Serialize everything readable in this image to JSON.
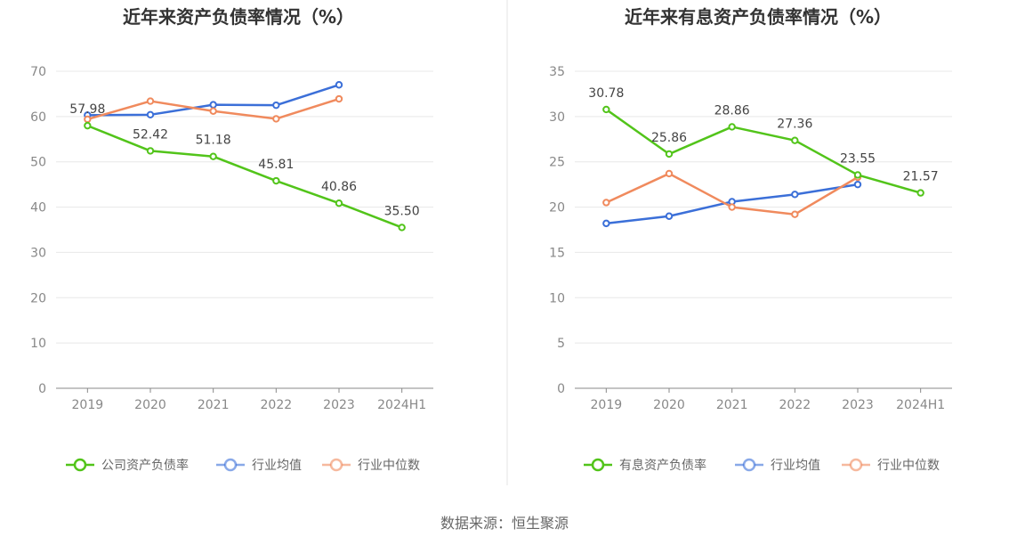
{
  "source_text": "数据来源：恒生聚源",
  "colors": {
    "green": "#52c41a",
    "blue": "#3b6fd8",
    "orange": "#f08a5d",
    "grid": "#e8e8e8",
    "axis": "#888888"
  },
  "chart_data": [
    {
      "type": "line",
      "title": "近年来资产负债率情况（%）",
      "categories": [
        "2019",
        "2020",
        "2021",
        "2022",
        "2023",
        "2024H1"
      ],
      "ylim": [
        0,
        70
      ],
      "yticks": [
        "0",
        "10",
        "20",
        "30",
        "40",
        "50",
        "60",
        "70"
      ],
      "grid": true,
      "legend_position": "bottom",
      "series": [
        {
          "name": "公司资产负债率",
          "color": "#52c41a",
          "values": [
            57.98,
            52.42,
            51.18,
            45.81,
            40.86,
            35.5
          ],
          "labels": [
            "57.98",
            "52.42",
            "51.18",
            "45.81",
            "40.86",
            "35.50"
          ]
        },
        {
          "name": "行业均值",
          "color": "#3b6fd8",
          "values": [
            60.3,
            60.4,
            62.6,
            62.5,
            67.0,
            null
          ],
          "labels": []
        },
        {
          "name": "行业中位数",
          "color": "#f08a5d",
          "values": [
            59.4,
            63.4,
            61.2,
            59.5,
            63.9,
            null
          ],
          "labels": []
        }
      ]
    },
    {
      "type": "line",
      "title": "近年来有息资产负债率情况（%）",
      "categories": [
        "2019",
        "2020",
        "2021",
        "2022",
        "2023",
        "2024H1"
      ],
      "ylim": [
        0,
        35
      ],
      "yticks": [
        "0",
        "5",
        "10",
        "15",
        "20",
        "25",
        "30",
        "35"
      ],
      "grid": true,
      "legend_position": "bottom",
      "series": [
        {
          "name": "有息资产负债率",
          "color": "#52c41a",
          "values": [
            30.78,
            25.86,
            28.86,
            27.36,
            23.55,
            21.57
          ],
          "labels": [
            "30.78",
            "25.86",
            "28.86",
            "27.36",
            "23.55",
            "21.57"
          ]
        },
        {
          "name": "行业均值",
          "color": "#3b6fd8",
          "values": [
            18.2,
            19.0,
            20.6,
            21.4,
            22.5,
            null
          ],
          "labels": []
        },
        {
          "name": "行业中位数",
          "color": "#f08a5d",
          "values": [
            20.5,
            23.7,
            20.0,
            19.2,
            23.3,
            null
          ],
          "labels": []
        }
      ]
    }
  ]
}
